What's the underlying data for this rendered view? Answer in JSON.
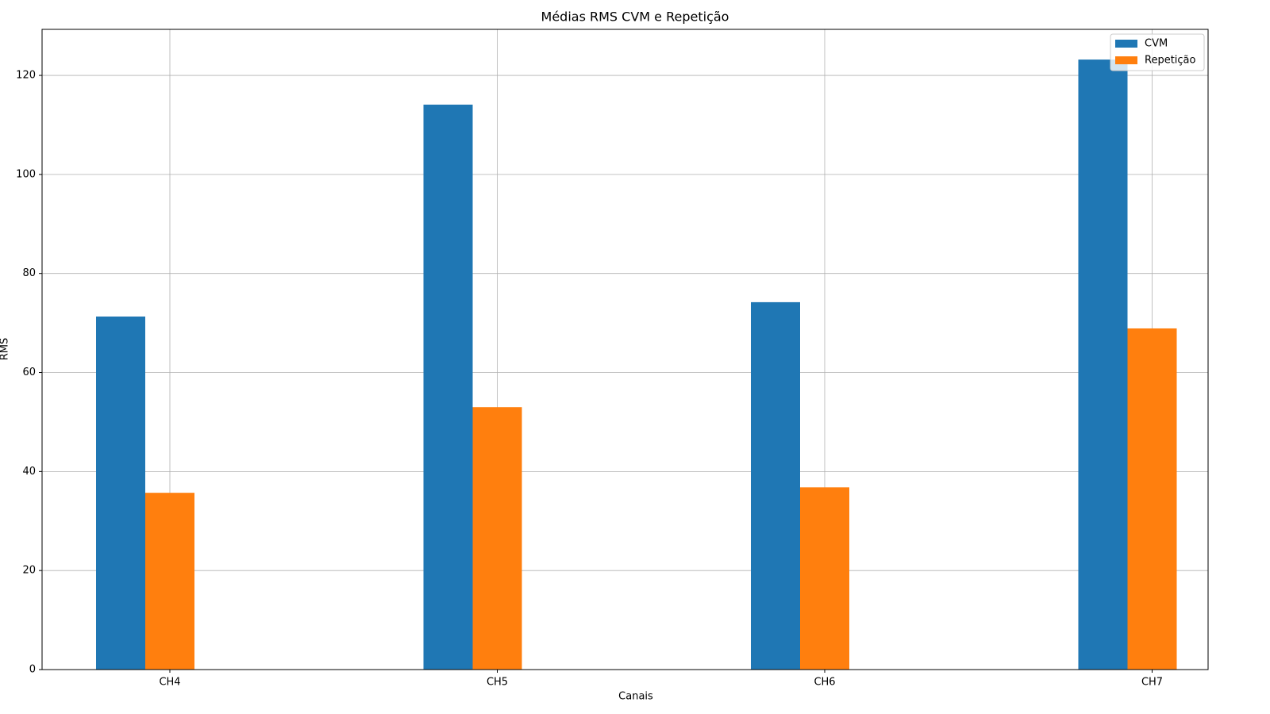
{
  "chart_data": {
    "type": "bar",
    "title": "Médias RMS CVM e Repetição",
    "x_label": "Canais",
    "y_label": "RMS",
    "categories": [
      "CH4",
      "CH5",
      "CH6",
      "CH7"
    ],
    "series": [
      {
        "name": "CVM",
        "color": "#1f77b4",
        "values": [
          71.3,
          114.1,
          74.2,
          123.2
        ]
      },
      {
        "name": "Repetição",
        "color": "#ff7f0e",
        "values": [
          35.7,
          53.0,
          36.8,
          68.9
        ]
      }
    ],
    "ylim": [
      0,
      129.3
    ],
    "yticks": [
      0,
      20,
      40,
      60,
      80,
      100,
      120
    ],
    "grid": true,
    "legend": "upper right"
  }
}
